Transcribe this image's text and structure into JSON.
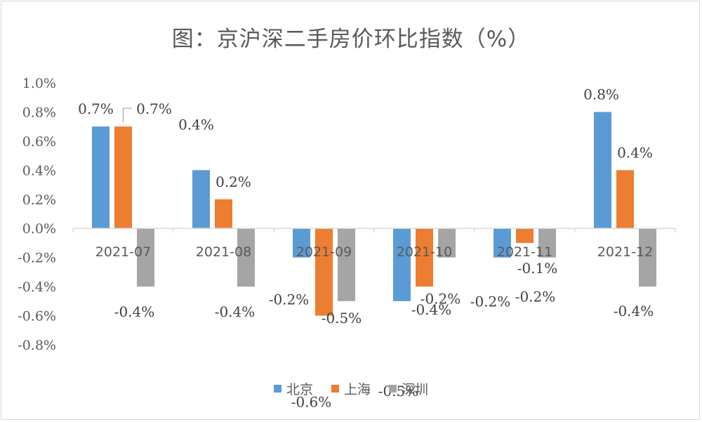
{
  "chart_data": {
    "type": "bar",
    "title": "图：京沪深二手房价环比指数（%）",
    "categories": [
      "2021-07",
      "2021-08",
      "2021-09",
      "2021-10",
      "2021-11",
      "2021-12"
    ],
    "series": [
      {
        "name": "北京",
        "color": "#5b9bd5",
        "values": [
          0.7,
          0.4,
          -0.2,
          -0.5,
          -0.2,
          0.8
        ],
        "labels": [
          "0.7%",
          "0.4%",
          "-0.2%",
          "-0.5%",
          "-0.2%",
          "0.8%"
        ]
      },
      {
        "name": "上海",
        "color": "#ed7d31",
        "values": [
          0.7,
          0.2,
          -0.6,
          -0.4,
          -0.1,
          0.4
        ],
        "labels": [
          "0.7%",
          "0.2%",
          "-0.6%",
          "-0.4%",
          "-0.1%",
          "0.4%"
        ]
      },
      {
        "name": "深圳",
        "color": "#a5a5a5",
        "values": [
          -0.4,
          -0.4,
          -0.5,
          -0.2,
          -0.2,
          -0.4
        ],
        "labels": [
          "-0.4%",
          "-0.4%",
          "-0.5%",
          "-0.2%",
          "-0.2%",
          "-0.4%"
        ]
      }
    ],
    "ylim": [
      -0.8,
      1.0
    ],
    "ytick_labels": [
      "1.0%",
      "0.8%",
      "0.6%",
      "0.4%",
      "0.2%",
      "0.0%",
      "-0.2%",
      "-0.4%",
      "-0.6%",
      "-0.8%"
    ],
    "ytick_values": [
      1.0,
      0.8,
      0.6,
      0.4,
      0.2,
      0.0,
      -0.2,
      -0.4,
      -0.6,
      -0.8
    ],
    "grid": false,
    "legend_position": "bottom"
  }
}
